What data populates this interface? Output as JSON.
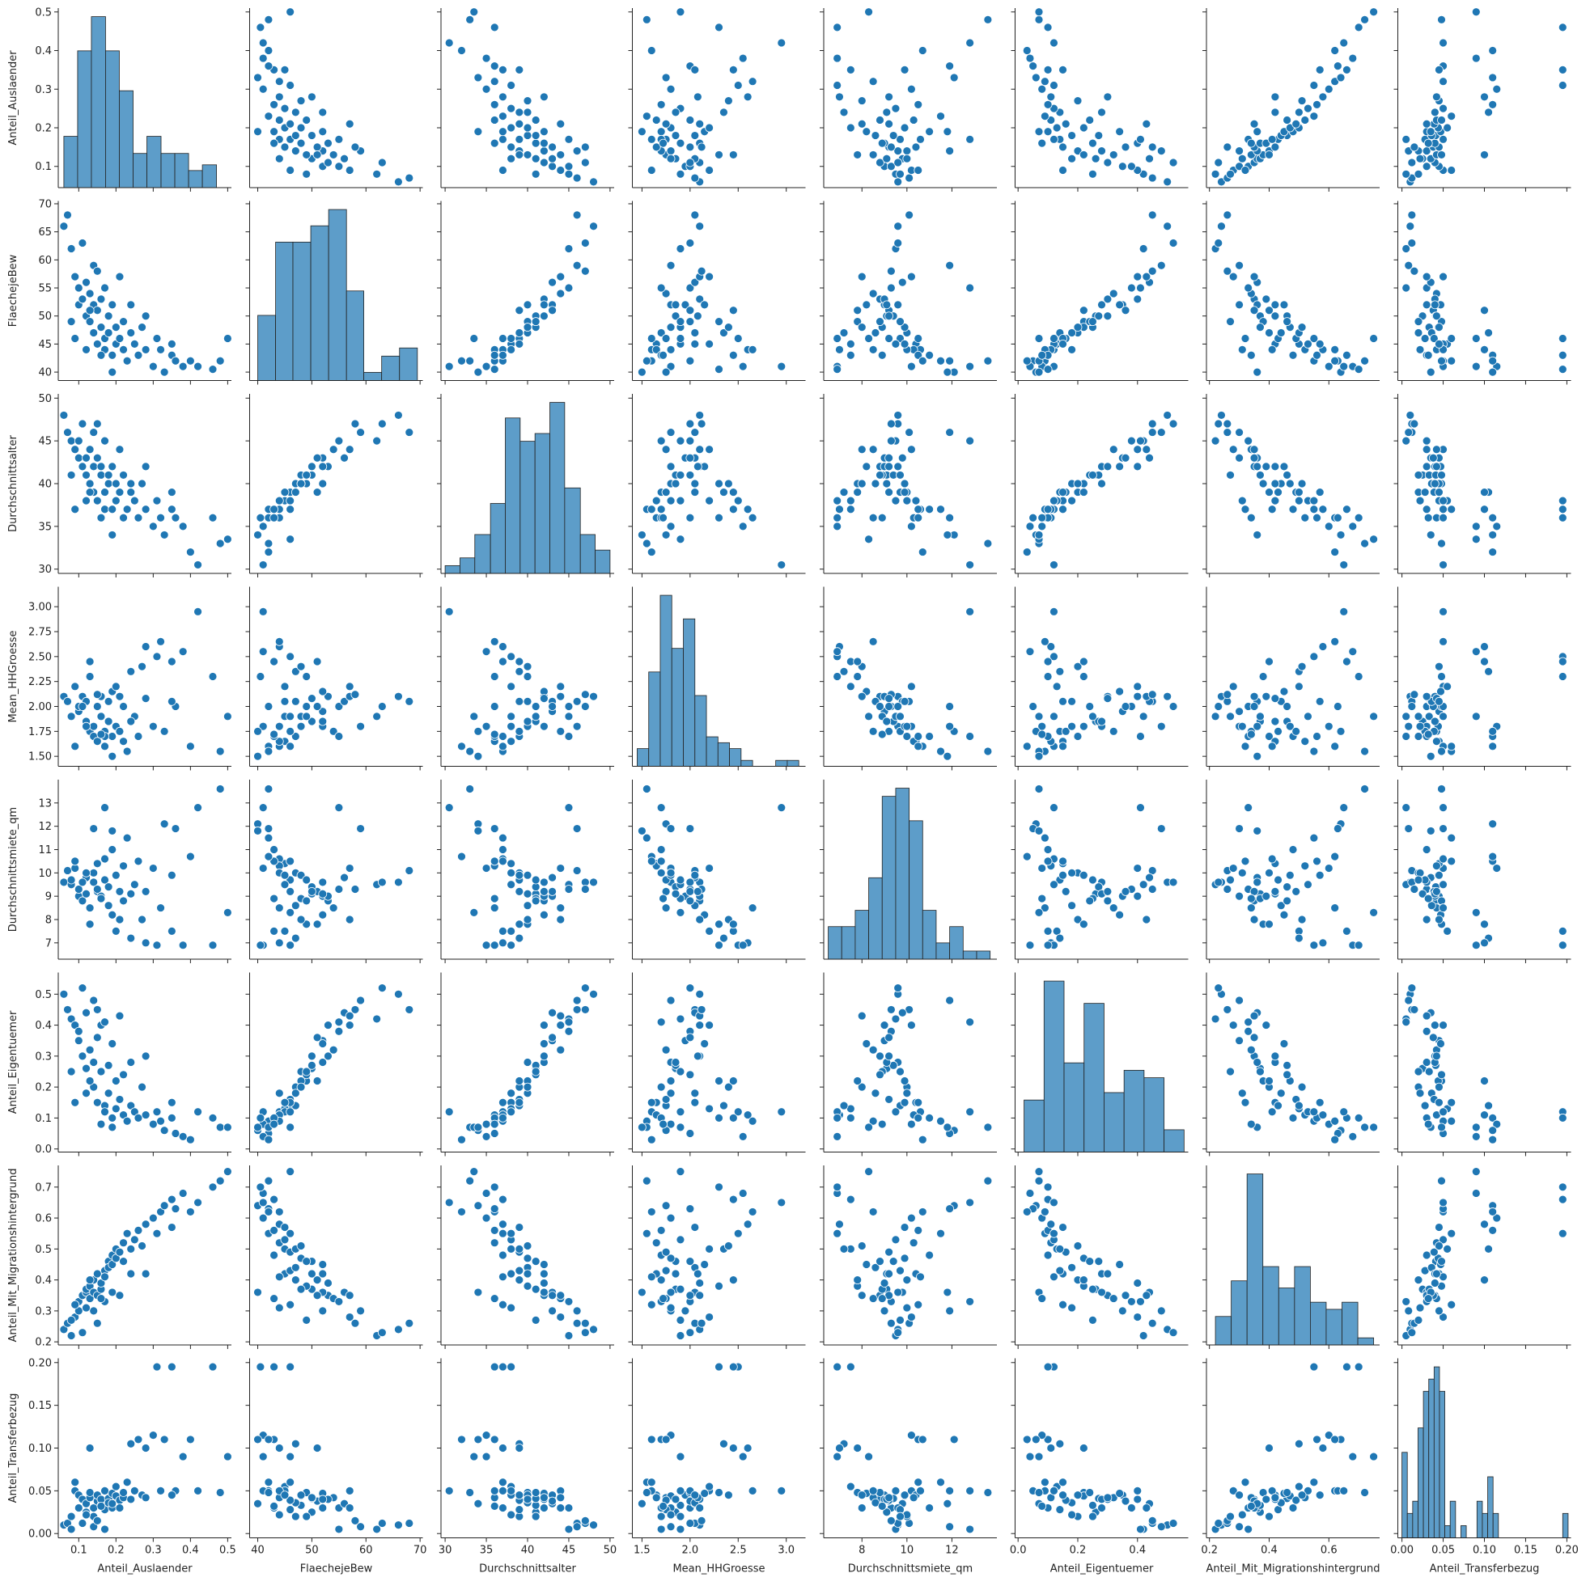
{
  "chart_data": {
    "type": "pairplot",
    "color": "#1f77b4",
    "hist_color": "#5d9dc9",
    "variables": [
      {
        "name": "Anteil_Auslaender",
        "lim": [
          0.045,
          0.51
        ],
        "xticks": [
          0.1,
          0.2,
          0.3,
          0.4,
          0.5
        ],
        "yticks": [
          0.1,
          0.2,
          0.3,
          0.4,
          0.5
        ],
        "bins": [
          0.06,
          0.097,
          0.134,
          0.172,
          0.209,
          0.246,
          0.283,
          0.321,
          0.358,
          0.395,
          0.432,
          0.47
        ],
        "counts": [
          9,
          24,
          30,
          24,
          17,
          6,
          9,
          6,
          6,
          3,
          4
        ]
      },
      {
        "name": "FlaechejeBew",
        "lim": [
          38.5,
          70.5
        ],
        "xticks": [
          40,
          50,
          60,
          70
        ],
        "yticks": [
          40,
          45,
          50,
          55,
          60,
          65,
          70
        ],
        "bins": [
          40,
          43.3,
          46.5,
          49.8,
          53.1,
          56.4,
          59.6,
          62.9,
          66.2,
          69.5
        ],
        "counts": [
          8,
          17,
          17,
          19,
          21,
          11,
          1,
          3,
          4
        ]
      },
      {
        "name": "Durchschnittsalter",
        "lim": [
          29.5,
          50.5
        ],
        "xticks": [
          30,
          35,
          40,
          45,
          50
        ],
        "yticks": [
          30,
          35,
          40,
          45,
          50
        ],
        "bins": [
          30,
          31.8,
          33.6,
          35.5,
          37.3,
          39.1,
          40.9,
          42.7,
          44.5,
          46.4,
          48.2,
          50
        ],
        "counts": [
          1,
          2,
          5,
          9,
          20,
          17,
          18,
          22,
          11,
          5,
          3
        ]
      },
      {
        "name": "Mean_HHGroesse",
        "lim": [
          1.4,
          3.2
        ],
        "xticks": [
          1.5,
          {
            "value": 2,
            "label": "2.0"
          },
          2.5,
          {
            "value": 3,
            "label": "3.0"
          }
        ],
        "yticks": [
          {
            "value": 1.5,
            "label": "1.50"
          },
          1.75,
          {
            "value": 2,
            "label": "2.00"
          },
          2.25,
          {
            "value": 2.5,
            "label": "2.50"
          },
          2.75,
          {
            "value": 3,
            "label": "3.00"
          }
        ],
        "bins": [
          1.45,
          1.57,
          1.69,
          1.81,
          1.93,
          2.05,
          2.17,
          2.29,
          2.41,
          2.53,
          2.65,
          2.77,
          2.89,
          3.01,
          3.13
        ],
        "counts": [
          3,
          16,
          29,
          20,
          25,
          12,
          5,
          4,
          3,
          1,
          0,
          0,
          1,
          1
        ]
      },
      {
        "name": "Durchschnittsmiete_qm",
        "lim": [
          6.3,
          14
        ],
        "xticks": [
          8,
          10,
          12
        ],
        "yticks": [
          7,
          8,
          9,
          10,
          11,
          12,
          13
        ],
        "bins": [
          6.5,
          7.1,
          7.7,
          8.3,
          8.9,
          9.5,
          10.1,
          10.7,
          11.3,
          11.9,
          12.5,
          13.1,
          13.7
        ],
        "counts": [
          4,
          4,
          6,
          10,
          20,
          21,
          17,
          6,
          2,
          4,
          1,
          1
        ]
      },
      {
        "name": "Anteil_Eigentuemer",
        "lim": [
          -0.01,
          0.57
        ],
        "xticks": [
          {
            "value": 0,
            "label": "0.0"
          },
          0.2,
          0.4
        ],
        "yticks": [
          {
            "value": 0,
            "label": "0.0"
          },
          0.1,
          0.2,
          0.3,
          0.4,
          0.5
        ],
        "bins": [
          0.02,
          0.087,
          0.154,
          0.221,
          0.288,
          0.355,
          0.422,
          0.489,
          0.556
        ],
        "counts": [
          7,
          23,
          12,
          20,
          8,
          11,
          10,
          3
        ]
      },
      {
        "name": "Anteil_Mit_Migrationshintergrund",
        "lim": [
          0.19,
          0.77
        ],
        "xticks": [
          0.2,
          0.4,
          0.6
        ],
        "yticks": [
          0.2,
          0.3,
          0.4,
          0.5,
          0.6,
          0.7
        ],
        "bins": [
          0.22,
          0.273,
          0.326,
          0.379,
          0.432,
          0.485,
          0.538,
          0.591,
          0.644,
          0.697,
          0.75
        ],
        "counts": [
          4,
          9,
          24,
          11,
          8,
          11,
          6,
          5,
          6,
          1
        ]
      },
      {
        "name": "Anteil_Transferbezug",
        "lim": [
          -0.005,
          0.205
        ],
        "xticks": [
          {
            "value": 0,
            "label": "0.00"
          },
          0.05,
          {
            "value": 0.1,
            "label": "0.10"
          },
          0.15,
          {
            "value": 0.2,
            "label": "0.20"
          }
        ],
        "yticks": [
          {
            "value": 0,
            "label": "0.00"
          },
          0.05,
          {
            "value": 0.1,
            "label": "0.10"
          },
          0.15,
          {
            "value": 0.2,
            "label": "0.20"
          }
        ],
        "bins": [
          0,
          0.0065,
          0.013,
          0.0195,
          0.026,
          0.0325,
          0.039,
          0.0455,
          0.052,
          0.0585,
          0.065,
          0.0715,
          0.078,
          0.0845,
          0.091,
          0.0975,
          0.104,
          0.1105,
          0.117,
          0.1235,
          0.13,
          0.1365,
          0.143,
          0.1495,
          0.156,
          0.1625,
          0.169,
          0.1755,
          0.182,
          0.1885,
          0.195,
          0.2015
        ],
        "counts": [
          7,
          2,
          3,
          9,
          12,
          13,
          14,
          12,
          1,
          3,
          0,
          1,
          0,
          0,
          3,
          2,
          5,
          2,
          0,
          0,
          0,
          0,
          0,
          0,
          0,
          0,
          0,
          0,
          0,
          0,
          2
        ]
      }
    ],
    "rows": [
      [
        0.06,
        66,
        48,
        2.1,
        9.6,
        0.5,
        0.24,
        0.01
      ],
      [
        0.07,
        68,
        46,
        2.05,
        10.1,
        0.45,
        0.26,
        0.012
      ],
      [
        0.08,
        62,
        45,
        1.9,
        9.5,
        0.42,
        0.22,
        0.005
      ],
      [
        0.09,
        57,
        44,
        2.2,
        10.2,
        0.4,
        0.28,
        0.05
      ],
      [
        0.1,
        52,
        43,
        1.95,
        9,
        0.35,
        0.3,
        0.045
      ],
      [
        0.1,
        55,
        45,
        2,
        9.3,
        0.38,
        0.33,
        0.03
      ],
      [
        0.11,
        53,
        42,
        2.1,
        8.8,
        0.3,
        0.35,
        0.04
      ],
      [
        0.12,
        56,
        43,
        2.05,
        9.8,
        0.44,
        0.36,
        0.035
      ],
      [
        0.12,
        50,
        41,
        1.85,
        9.1,
        0.26,
        0.37,
        0.025
      ],
      [
        0.13,
        54,
        44,
        1.75,
        8.5,
        0.32,
        0.34,
        0.042
      ],
      [
        0.13,
        49,
        40,
        2.3,
        7.8,
        0.22,
        0.38,
        0.048
      ],
      [
        0.14,
        52,
        42,
        1.8,
        9.6,
        0.28,
        0.36,
        0.03
      ],
      [
        0.14,
        47,
        39,
        1.7,
        10,
        0.2,
        0.4,
        0.02
      ],
      [
        0.15,
        51,
        43,
        2,
        9.2,
        0.36,
        0.35,
        0.038
      ],
      [
        0.15,
        45,
        38,
        1.65,
        10.4,
        0.15,
        0.42,
        0.045
      ],
      [
        0.16,
        48,
        41,
        1.9,
        8.9,
        0.25,
        0.37,
        0.033
      ],
      [
        0.16,
        53,
        42,
        2.1,
        9,
        0.4,
        0.39,
        0.04
      ],
      [
        0.17,
        46,
        39,
        1.75,
        9.7,
        0.14,
        0.43,
        0.028
      ],
      [
        0.17,
        44,
        37,
        1.6,
        10.6,
        0.12,
        0.41,
        0.05
      ],
      [
        0.18,
        50,
        41,
        1.85,
        9.4,
        0.27,
        0.46,
        0.041
      ],
      [
        0.18,
        47,
        40,
        2.05,
        8.6,
        0.18,
        0.44,
        0.036
      ],
      [
        0.19,
        43,
        37,
        1.7,
        11,
        0.1,
        0.48,
        0.03
      ],
      [
        0.19,
        52,
        42,
        2.15,
        8.2,
        0.34,
        0.45,
        0.047
      ],
      [
        0.2,
        48,
        40,
        1.8,
        9.9,
        0.22,
        0.47,
        0.044
      ],
      [
        0.2,
        45,
        38,
        2.2,
        7.5,
        0.13,
        0.5,
        0.055
      ],
      [
        0.21,
        46,
        39,
        1.75,
        9.2,
        0.16,
        0.49,
        0.039
      ],
      [
        0.22,
        44,
        36,
        1.65,
        10.3,
        0.11,
        0.52,
        0.042
      ],
      [
        0.22,
        49,
        41,
        2,
        8.8,
        0.24,
        0.46,
        0.048
      ],
      [
        0.23,
        42,
        37,
        1.55,
        11.5,
        0.09,
        0.55,
        0.06
      ],
      [
        0.24,
        47,
        39,
        2.35,
        7.2,
        0.14,
        0.5,
        0.105
      ],
      [
        0.25,
        45,
        38,
        1.9,
        9.5,
        0.12,
        0.53,
        0.05
      ],
      [
        0.26,
        43,
        36,
        1.7,
        10.5,
        0.1,
        0.56,
        0.11
      ],
      [
        0.27,
        48,
        40,
        2.4,
        8,
        0.2,
        0.51,
        0.045
      ],
      [
        0.28,
        44,
        37,
        2.6,
        7,
        0.11,
        0.58,
        0.1
      ],
      [
        0.3,
        41,
        35,
        1.8,
        10.2,
        0.08,
        0.6,
        0.115
      ],
      [
        0.31,
        46,
        38,
        2.5,
        6.9,
        0.12,
        0.55,
        0.195
      ],
      [
        0.32,
        44,
        36,
        2.65,
        8.5,
        0.09,
        0.62,
        0.05
      ],
      [
        0.33,
        40,
        34,
        1.75,
        12.1,
        0.06,
        0.64,
        0.11
      ],
      [
        0.35,
        43,
        37,
        2.45,
        7.5,
        0.1,
        0.66,
        0.195
      ],
      [
        0.36,
        42,
        36,
        2,
        11.9,
        0.05,
        0.63,
        0.05
      ],
      [
        0.38,
        41,
        35,
        2.55,
        6.9,
        0.04,
        0.68,
        0.09
      ],
      [
        0.4,
        42,
        32,
        1.6,
        10.7,
        0.03,
        0.62,
        0.11
      ],
      [
        0.42,
        41,
        30.5,
        2.95,
        12.8,
        0.12,
        0.65,
        0.05
      ],
      [
        0.46,
        40.5,
        36,
        2.3,
        6.9,
        0.1,
        0.7,
        0.195
      ],
      [
        0.48,
        42,
        33,
        1.55,
        13.6,
        0.07,
        0.72,
        0.048
      ],
      [
        0.5,
        46,
        33.5,
        1.9,
        8.3,
        0.07,
        0.75,
        0.09
      ],
      [
        0.11,
        63,
        47,
        2,
        9.6,
        0.52,
        0.23,
        0.012
      ],
      [
        0.14,
        59,
        46,
        1.8,
        11.9,
        0.48,
        0.3,
        0.008
      ],
      [
        0.09,
        46,
        37,
        1.6,
        10.5,
        0.15,
        0.32,
        0.06
      ],
      [
        0.17,
        55,
        45,
        1.7,
        12.8,
        0.41,
        0.33,
        0.005
      ],
      [
        0.13,
        51,
        39,
        2.45,
        7.8,
        0.22,
        0.4,
        0.1
      ],
      [
        0.21,
        57,
        44,
        2.1,
        8,
        0.43,
        0.35,
        0.03
      ],
      [
        0.24,
        52,
        40,
        1.85,
        9.1,
        0.28,
        0.42,
        0.04
      ],
      [
        0.12,
        44,
        38,
        1.8,
        10,
        0.18,
        0.31,
        0.022
      ],
      [
        0.15,
        58,
        47,
        2.12,
        9.3,
        0.45,
        0.26,
        0.015
      ],
      [
        0.19,
        40,
        34,
        1.5,
        11.8,
        0.07,
        0.36,
        0.035
      ],
      [
        0.28,
        50,
        42,
        2.08,
        9.2,
        0.3,
        0.42,
        0.042
      ],
      [
        0.08,
        49,
        41,
        1.9,
        9.7,
        0.25,
        0.27,
        0.02
      ],
      [
        0.35,
        45,
        39,
        2.05,
        9.9,
        0.15,
        0.57,
        0.045
      ],
      [
        0.16,
        43,
        36,
        1.72,
        8.9,
        0.08,
        0.34,
        0.032
      ]
    ]
  }
}
